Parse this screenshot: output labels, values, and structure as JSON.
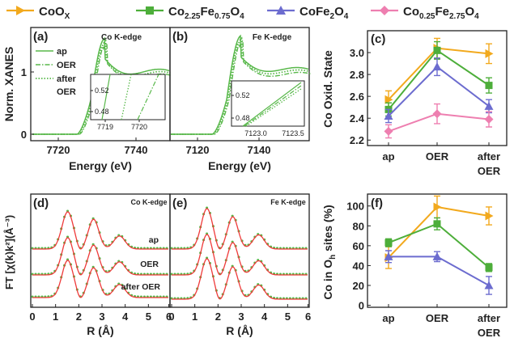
{
  "colors": {
    "coox": "#f2a91d",
    "co225": "#4dae3a",
    "cofe2o4": "#6c6ccf",
    "co025": "#ee7fb0",
    "fit": "#ef3a3a",
    "green": "#58b84a"
  },
  "legend": [
    {
      "key": "coox",
      "base": "CoO",
      "sub": "X",
      "rest": [],
      "marker": "triangle-right"
    },
    {
      "key": "co225",
      "base": "Co",
      "sub": "2.25",
      "rest": [
        [
          "Fe",
          ""
        ],
        [
          "0.75",
          true
        ],
        [
          "O",
          ""
        ],
        [
          "4",
          true
        ]
      ],
      "marker": "square"
    },
    {
      "key": "cofe2o4",
      "base": "CoFe",
      "sub": "2",
      "rest": [
        [
          "O",
          ""
        ],
        [
          "4",
          true
        ]
      ],
      "marker": "triangle-up"
    },
    {
      "key": "co025",
      "base": "Co",
      "sub": "0.25",
      "rest": [
        [
          "Fe",
          ""
        ],
        [
          "2.75",
          true
        ],
        [
          "O",
          ""
        ],
        [
          "4",
          true
        ]
      ],
      "marker": "diamond"
    }
  ],
  "panel_a": {
    "tag": "(a)",
    "edge": "Co K-edge",
    "ylabel": "Norm. XANES",
    "xlabel": "Energy (eV)",
    "xticks": [
      "7720",
      "7740"
    ],
    "yticks": [
      "0",
      "1"
    ],
    "legend": [
      "ap",
      "OER",
      "after",
      "OER"
    ],
    "inset": {
      "xticks": [
        "7719",
        "7720"
      ],
      "yticks": [
        "0.52",
        "0.48"
      ]
    }
  },
  "panel_b": {
    "tag": "(b)",
    "edge": "Fe K-edge",
    "xlabel": "Energy (eV)",
    "xticks": [
      "7120",
      "7140"
    ],
    "inset": {
      "xticks": [
        "7123.0",
        "7123.5"
      ],
      "yticks": [
        "0.52",
        "0.48"
      ]
    }
  },
  "panel_d": {
    "tag": "(d)",
    "edge": "Co K-edge",
    "ylabel": "FT [χ(k)k²](Å⁻³)",
    "xlabel": "R (Å)",
    "xticks": [
      "0",
      "1",
      "2",
      "3",
      "4",
      "5",
      "6"
    ],
    "labels": [
      "ap",
      "OER",
      "after OER"
    ]
  },
  "panel_e": {
    "tag": "(e)",
    "edge": "Fe K-edge",
    "xlabel": "R (Å)",
    "xticks": [
      "0",
      "1",
      "2",
      "3",
      "4",
      "5",
      "6"
    ]
  },
  "chart_data": [
    {
      "panel": "c",
      "type": "line",
      "tag": "(c)",
      "ylabel": "Co Oxid. State",
      "categories": [
        "ap",
        "OER",
        "after OER"
      ],
      "tick_lines": [
        [
          "ap"
        ],
        [
          "OER"
        ],
        [
          "after",
          "OER"
        ]
      ],
      "ylim": [
        2.15,
        3.2
      ],
      "yticks": [
        2.2,
        2.4,
        2.6,
        2.8,
        3.0
      ],
      "series": [
        {
          "key": "coox",
          "values": [
            2.57,
            3.04,
            2.99
          ],
          "err": [
            0.08,
            0.09,
            0.09
          ]
        },
        {
          "key": "co225",
          "values": [
            2.48,
            3.02,
            2.7
          ],
          "err": [
            0.06,
            0.08,
            0.07
          ]
        },
        {
          "key": "cofe2o4",
          "values": [
            2.42,
            2.87,
            2.51
          ],
          "err": [
            0.06,
            0.08,
            0.06
          ]
        },
        {
          "key": "co025",
          "values": [
            2.28,
            2.44,
            2.39
          ],
          "err": [
            0.06,
            0.09,
            0.07
          ]
        }
      ]
    },
    {
      "panel": "f",
      "type": "line",
      "tag": "(f)",
      "ylabel": "Co in O_h sites (%)",
      "categories": [
        "ap",
        "OER",
        "after OER"
      ],
      "tick_lines": [
        [
          "ap"
        ],
        [
          "OER"
        ],
        [
          "after",
          "OER"
        ]
      ],
      "ylim": [
        -2,
        112
      ],
      "yticks": [
        0,
        20,
        40,
        60,
        80,
        100
      ],
      "series": [
        {
          "key": "coox",
          "values": [
            48,
            99,
            90
          ],
          "err": [
            11,
            11,
            9
          ]
        },
        {
          "key": "co225",
          "values": [
            63,
            82,
            38
          ],
          "err": [
            4,
            6,
            4
          ]
        },
        {
          "key": "cofe2o4",
          "values": [
            49,
            49,
            20
          ],
          "err": [
            6,
            5,
            9
          ]
        }
      ]
    }
  ]
}
